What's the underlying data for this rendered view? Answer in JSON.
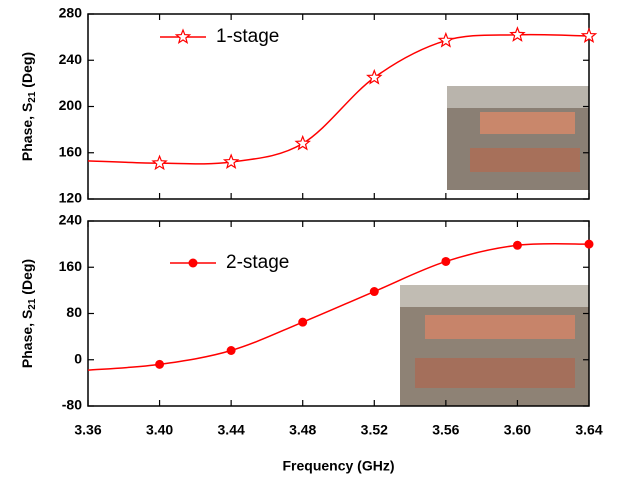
{
  "chart_data": [
    {
      "type": "line",
      "ylabel": [
        "Phase, S",
        "21",
        " (Deg)"
      ],
      "x": [
        3.36,
        3.4,
        3.44,
        3.48,
        3.52,
        3.56,
        3.6,
        3.64
      ],
      "xlim": [
        3.36,
        3.64
      ],
      "xticks": [
        3.36,
        3.4,
        3.44,
        3.48,
        3.52,
        3.56,
        3.6,
        3.64
      ],
      "ylim": [
        120,
        280
      ],
      "yticks": [
        120,
        160,
        200,
        240,
        280
      ],
      "series": [
        {
          "name": "1-stage",
          "color": "#ff0000",
          "marker": "star",
          "values": [
            153,
            151,
            152,
            168,
            225,
            257,
            262,
            261
          ]
        }
      ]
    },
    {
      "type": "line",
      "ylabel": [
        "Phase, S",
        "21",
        " (Deg)"
      ],
      "xlabel": "Frequency (GHz)",
      "x": [
        3.36,
        3.4,
        3.44,
        3.48,
        3.52,
        3.56,
        3.6,
        3.64
      ],
      "xlim": [
        3.36,
        3.64
      ],
      "xticks": [
        3.36,
        {
          "value": 3.4,
          "label": "3.40"
        },
        3.44,
        3.48,
        3.52,
        3.56,
        {
          "value": 3.6,
          "label": "3.60"
        },
        3.64
      ],
      "ylim": [
        -80,
        240
      ],
      "yticks": [
        -80,
        0,
        80,
        160,
        240
      ],
      "series": [
        {
          "name": "2-stage",
          "color": "#ff0000",
          "marker": "circle",
          "values": [
            -18,
            -8,
            16,
            65,
            118,
            170,
            198,
            200
          ]
        }
      ]
    }
  ]
}
